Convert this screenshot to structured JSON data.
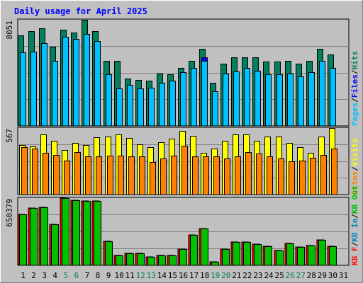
{
  "chart_data": {
    "type": "bar",
    "title": "Daily usage for April 2025",
    "days": [
      "1",
      "2",
      "3",
      "4",
      "5",
      "6",
      "7",
      "8",
      "9",
      "10",
      "11",
      "12",
      "13",
      "14",
      "15",
      "16",
      "17",
      "18",
      "19",
      "20",
      "21",
      "22",
      "23",
      "24",
      "25",
      "26",
      "27",
      "28",
      "29",
      "30",
      "31"
    ],
    "weekend_days": [
      5,
      6,
      12,
      13,
      19,
      20,
      26,
      27
    ],
    "colors": {
      "background": "#c0c0c0",
      "title": "#0000ff",
      "hits": "#00805c",
      "files": "#0000ff",
      "pages": "#00c0ff",
      "visits": "#ffff00",
      "sites": "#ff8000",
      "kb_in": "#0080c0",
      "kb_out": "#00c000",
      "kb_f": "#ff0000",
      "weekday_label": "#000000",
      "weekend_label": "#00805c",
      "legend_separator": "#000000"
    },
    "panels": [
      {
        "name": "hits-files-pages",
        "max_label": "8051",
        "max": 8051,
        "legend": [
          {
            "key": "pages",
            "text": "Pages"
          },
          {
            "key": "files",
            "text": "Files"
          },
          {
            "key": "hits",
            "text": "Hits"
          }
        ],
        "series": [
          {
            "key": "hits",
            "values": [
              6878,
              7168,
              7393,
              6009,
              7319,
              7093,
              8051,
              7168,
              4931,
              4931,
              3587,
              3507,
              3437,
              3976,
              3906,
              4382,
              4931,
              5856,
              3278,
              4702,
              5202,
              5202,
              5202,
              4863,
              4863,
              4931,
              4702,
              4931,
              5856,
              5426,
              null
            ]
          },
          {
            "key": "files",
            "values": [
              5556,
              5656,
              6283,
              4931,
              6787,
              6589,
              6983,
              6452,
              3906,
              2840,
              3114,
              2840,
              2920,
              3278,
              3437,
              4095,
              4382,
              5198,
              2615,
              3976,
              4145,
              4382,
              4202,
              3906,
              3906,
              3976,
              3736,
              4095,
              4931,
              4382,
              null
            ]
          },
          {
            "key": "pages",
            "values": [
              5556,
              5656,
              6283,
              4931,
              6787,
              6589,
              6983,
              6452,
              3906,
              2840,
              3114,
              2840,
              2920,
              3278,
              3437,
              4095,
              4382,
              4931,
              2615,
              3976,
              4145,
              4382,
              4202,
              3906,
              3906,
              3976,
              3736,
              4095,
              4931,
              4382,
              null
            ]
          }
        ]
      },
      {
        "name": "visits-sites",
        "max_label": "567",
        "max": 567,
        "legend": [
          {
            "key": "sites",
            "text": "Sites"
          },
          {
            "key": "visits",
            "text": "Visits"
          }
        ],
        "series": [
          {
            "key": "visits",
            "values": [
              424,
              411,
              515,
              458,
              379,
              440,
              424,
              486,
              495,
              515,
              484,
              430,
              403,
              444,
              476,
              540,
              499,
              356,
              391,
              456,
              515,
              515,
              460,
              495,
              495,
              440,
              403,
              356,
              495,
              565,
              null
            ]
          },
          {
            "key": "sites",
            "values": [
              403,
              395,
              356,
              337,
              290,
              359,
              324,
              323,
              329,
              329,
              323,
              327,
              276,
              307,
              329,
              414,
              323,
              323,
              327,
              309,
              325,
              359,
              347,
              327,
              307,
              283,
              290,
              312,
              339,
              395,
              null
            ]
          }
        ]
      },
      {
        "name": "kbytes",
        "max_label": "650379",
        "max": 650379,
        "legend": [
          {
            "key": "kb_f",
            "text": "KB F"
          },
          {
            "key": "kb_in",
            "text": "KB In"
          },
          {
            "key": "kb_out",
            "text": "KB Out"
          }
        ],
        "series": [
          {
            "key": "kb_out",
            "values": [
              492240,
              552140,
              562140,
              398410,
              653000,
              632220,
              622220,
              622220,
              232160,
              94640,
              114440,
              114440,
              84160,
              94640,
              94640,
              154550,
              294010,
              357680,
              37100,
              154550,
              224680,
              224680,
              204680,
              184680,
              144630,
              214730,
              174830,
              194830,
              247120,
              184680,
              null
            ]
          }
        ]
      }
    ]
  }
}
